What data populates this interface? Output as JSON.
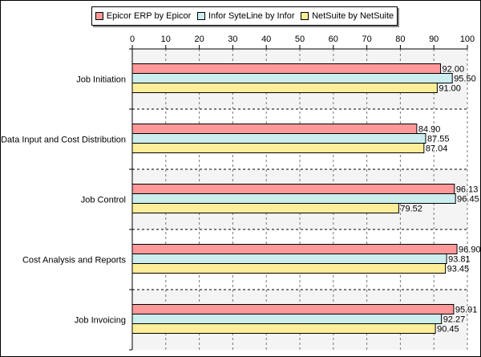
{
  "chart_data": {
    "type": "bar",
    "orientation": "horizontal",
    "title": "",
    "xlabel": "",
    "ylabel": "",
    "xlim": [
      0,
      100
    ],
    "x_ticks": [
      "0",
      "10",
      "20",
      "30",
      "40",
      "50",
      "60",
      "70",
      "80",
      "90",
      "100"
    ],
    "x_tick_values": [
      0,
      10,
      20,
      30,
      40,
      50,
      60,
      70,
      80,
      90,
      100
    ],
    "grid": true,
    "legend_position": "top",
    "categories": [
      "Job Initiation",
      "Data Input and Cost Distribution",
      "Job Control",
      "Cost Analysis and Reports",
      "Job Invoicing"
    ],
    "series": [
      {
        "name": "Epicor ERP by Epicor",
        "color": "#ff9999",
        "values": [
          92.0,
          84.9,
          96.13,
          96.9,
          95.91
        ],
        "labels": [
          "92.00",
          "84.90",
          "96.13",
          "96.90",
          "95.91"
        ]
      },
      {
        "name": "Infor SyteLine by Infor",
        "color": "#cceeee",
        "values": [
          95.5,
          87.55,
          96.45,
          93.81,
          92.27
        ],
        "labels": [
          "95.50",
          "87.55",
          "96.45",
          "93.81",
          "92.27"
        ]
      },
      {
        "name": "NetSuite by NetSuite",
        "color": "#ffee99",
        "values": [
          91.0,
          87.04,
          79.52,
          93.45,
          90.45
        ],
        "labels": [
          "91.00",
          "87.04",
          "79.52",
          "93.45",
          "90.45"
        ]
      }
    ]
  }
}
